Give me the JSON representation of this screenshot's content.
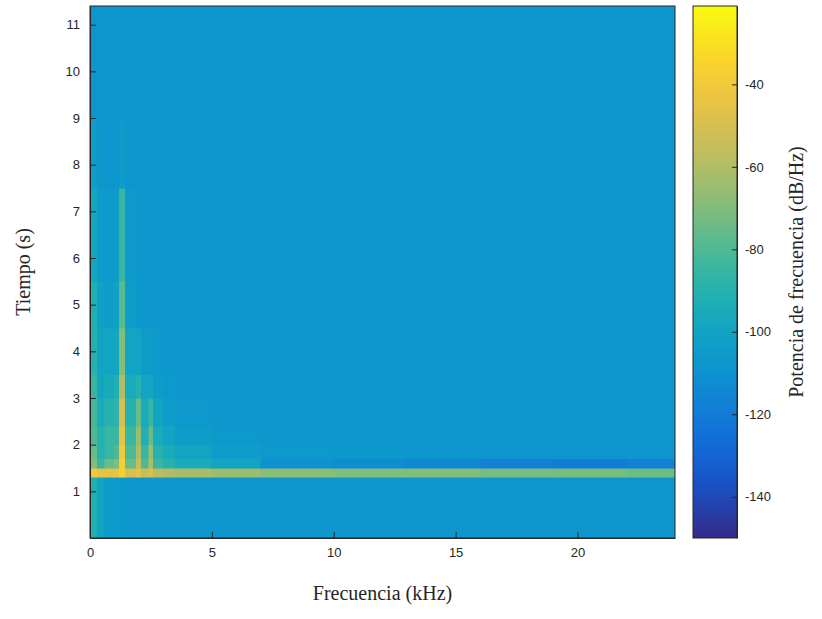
{
  "chart_data": {
    "type": "heatmap",
    "x_label": "Frecuencia (kHz)",
    "y_label": "Tiempo (s)",
    "colorbar_label": "Potencia de frecuencia (dB/Hz)",
    "xlim": [
      0,
      24
    ],
    "xticks": [
      0,
      5,
      10,
      15,
      20
    ],
    "ylim": [
      0,
      11.4
    ],
    "yticks": [
      1,
      2,
      3,
      4,
      5,
      6,
      7,
      8,
      9,
      10,
      11
    ],
    "x_edges": [
      0,
      0.3,
      0.6,
      1.0,
      1.2,
      1.45,
      1.9,
      2.1,
      2.4,
      2.6,
      3.0,
      3.5,
      5,
      7,
      10,
      13,
      16,
      19,
      22,
      24
    ],
    "y_edges": [
      0,
      1.3,
      1.5,
      1.7,
      2.0,
      2.4,
      3.0,
      3.5,
      4.5,
      5.5,
      7.5,
      9,
      11.4
    ],
    "cells": [
      [
        -92,
        -100,
        -105,
        -106,
        -106,
        -107,
        -107,
        -108,
        -108,
        -108,
        -108,
        -108,
        -108,
        -108,
        -108,
        -108,
        -108,
        -108,
        -108
      ],
      [
        -40,
        -45,
        -45,
        -45,
        -35,
        -50,
        -45,
        -55,
        -50,
        -58,
        -60,
        -62,
        -65,
        -68,
        -70,
        -70,
        -72,
        -72,
        -74
      ],
      [
        -70,
        -85,
        -75,
        -70,
        -38,
        -75,
        -55,
        -80,
        -60,
        -85,
        -90,
        -95,
        -100,
        -110,
        -112,
        -115,
        -118,
        -120,
        -118
      ],
      [
        -75,
        -90,
        -85,
        -80,
        -40,
        -80,
        -60,
        -85,
        -65,
        -90,
        -95,
        -100,
        -104,
        -106,
        -107,
        -108,
        -108,
        -108,
        -108
      ],
      [
        -80,
        -90,
        -85,
        -85,
        -45,
        -85,
        -65,
        -92,
        -75,
        -95,
        -100,
        -104,
        -106,
        -107,
        -108,
        -108,
        -108,
        -108,
        -108
      ],
      [
        -82,
        -95,
        -90,
        -88,
        -50,
        -90,
        -75,
        -95,
        -85,
        -100,
        -104,
        -106,
        -107,
        -108,
        -108,
        -108,
        -108,
        -108,
        -108
      ],
      [
        -85,
        -98,
        -95,
        -92,
        -60,
        -95,
        -90,
        -100,
        -98,
        -104,
        -106,
        -107,
        -108,
        -108,
        -108,
        -108,
        -108,
        -108,
        -108
      ],
      [
        -90,
        -100,
        -100,
        -98,
        -70,
        -100,
        -100,
        -104,
        -104,
        -106,
        -107,
        -108,
        -108,
        -108,
        -108,
        -108,
        -108,
        -108,
        -108
      ],
      [
        -92,
        -102,
        -104,
        -102,
        -78,
        -104,
        -106,
        -107,
        -107,
        -108,
        -108,
        -108,
        -108,
        -108,
        -108,
        -108,
        -108,
        -108,
        -108
      ],
      [
        -98,
        -105,
        -106,
        -104,
        -85,
        -106,
        -107,
        -108,
        -108,
        -108,
        -108,
        -108,
        -108,
        -108,
        -108,
        -108,
        -108,
        -108,
        -108
      ],
      [
        -104,
        -107,
        -108,
        -108,
        -105,
        -108,
        -108,
        -108,
        -108,
        -108,
        -108,
        -108,
        -108,
        -108,
        -108,
        -108,
        -108,
        -108,
        -108
      ],
      [
        -108,
        -108,
        -108,
        -108,
        -108,
        -108,
        -108,
        -108,
        -108,
        -108,
        -108,
        -108,
        -108,
        -108,
        -108,
        -108,
        -108,
        -108,
        -108
      ]
    ],
    "colorbar_range": [
      -150,
      -21
    ],
    "colorbar_ticks": [
      -140,
      -120,
      -100,
      -80,
      -60,
      -40
    ]
  }
}
